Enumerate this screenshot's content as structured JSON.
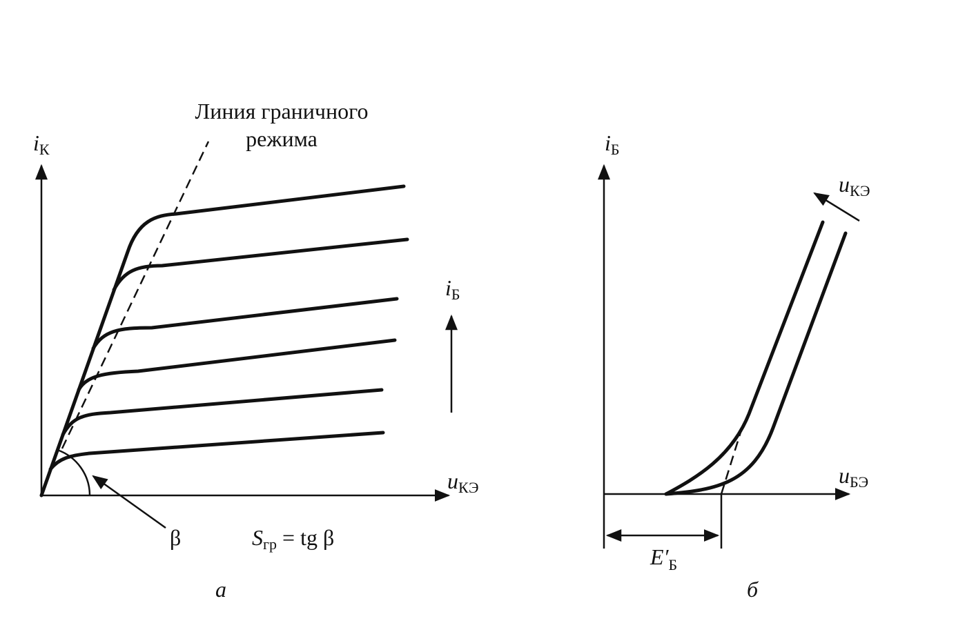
{
  "left_panel": {
    "y_axis": {
      "main": "i",
      "sub": "К"
    },
    "x_axis": {
      "main": "u",
      "sub": "КЭ"
    },
    "boundary_line_label": [
      "Линия граничного",
      "режима"
    ],
    "param_arrow": {
      "main": "i",
      "sub": "Б"
    },
    "angle": "β",
    "formula": {
      "main": "S",
      "sub": "гр",
      "rest": "= tg β"
    },
    "caption": "а"
  },
  "right_panel": {
    "y_axis": {
      "main": "i",
      "sub": "Б"
    },
    "x_axis": {
      "main": "u",
      "sub": "БЭ"
    },
    "param_arrow": {
      "main": "u",
      "sub": "КЭ"
    },
    "voltage": {
      "main": "E′",
      "sub": "Б"
    },
    "caption": "б"
  }
}
